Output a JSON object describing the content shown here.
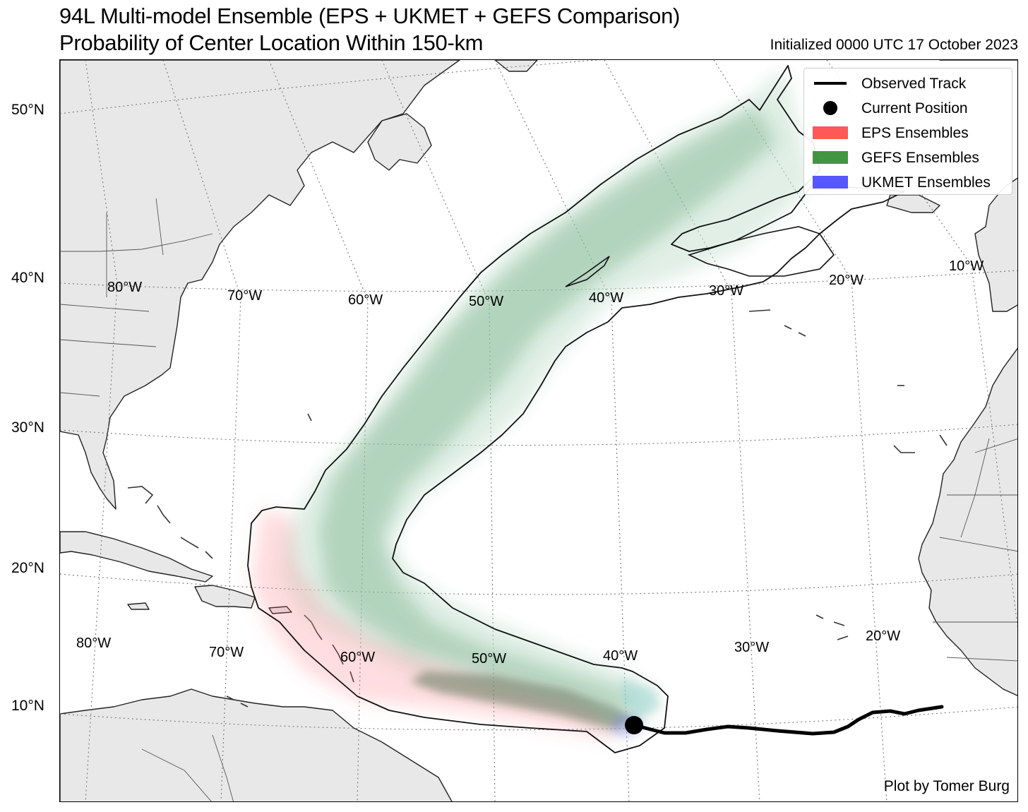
{
  "title": {
    "line1": "94L Multi-model Ensemble (EPS + UKMET + GEFS Comparison)",
    "line2": "Probability of Center Location Within 150-km",
    "initialized": "Initialized 0000 UTC 17 October 2023"
  },
  "lat_labels": [
    "50°N",
    "40°N",
    "30°N",
    "20°N",
    "10°N"
  ],
  "lon_labels_upper": [
    "80°W",
    "70°W",
    "60°W",
    "50°W",
    "40°W",
    "30°W",
    "20°W",
    "10°W"
  ],
  "lon_labels_lower": [
    "80°W",
    "70°W",
    "60°W",
    "50°W",
    "40°W",
    "30°W",
    "20°W"
  ],
  "legend": {
    "items": [
      {
        "label": "Observed Track",
        "symbol": "line",
        "color": "#000000"
      },
      {
        "label": "Current Position",
        "symbol": "dot",
        "color": "#000000"
      },
      {
        "label": "EPS Ensembles",
        "symbol": "patch",
        "color": "#ff3b3b"
      },
      {
        "label": "GEFS Ensembles",
        "symbol": "patch",
        "color": "#2e8b2e"
      },
      {
        "label": "UKMET Ensembles",
        "symbol": "patch",
        "color": "#3a3aff"
      }
    ]
  },
  "credit": "Plot by Tomer Burg",
  "colors": {
    "land": "#e8e8e8",
    "coast": "#1e1e1e",
    "grid": "#777777",
    "eps": "#ff3b3b",
    "gefs": "#2e8b2e",
    "ukmet": "#3a3aff"
  }
}
